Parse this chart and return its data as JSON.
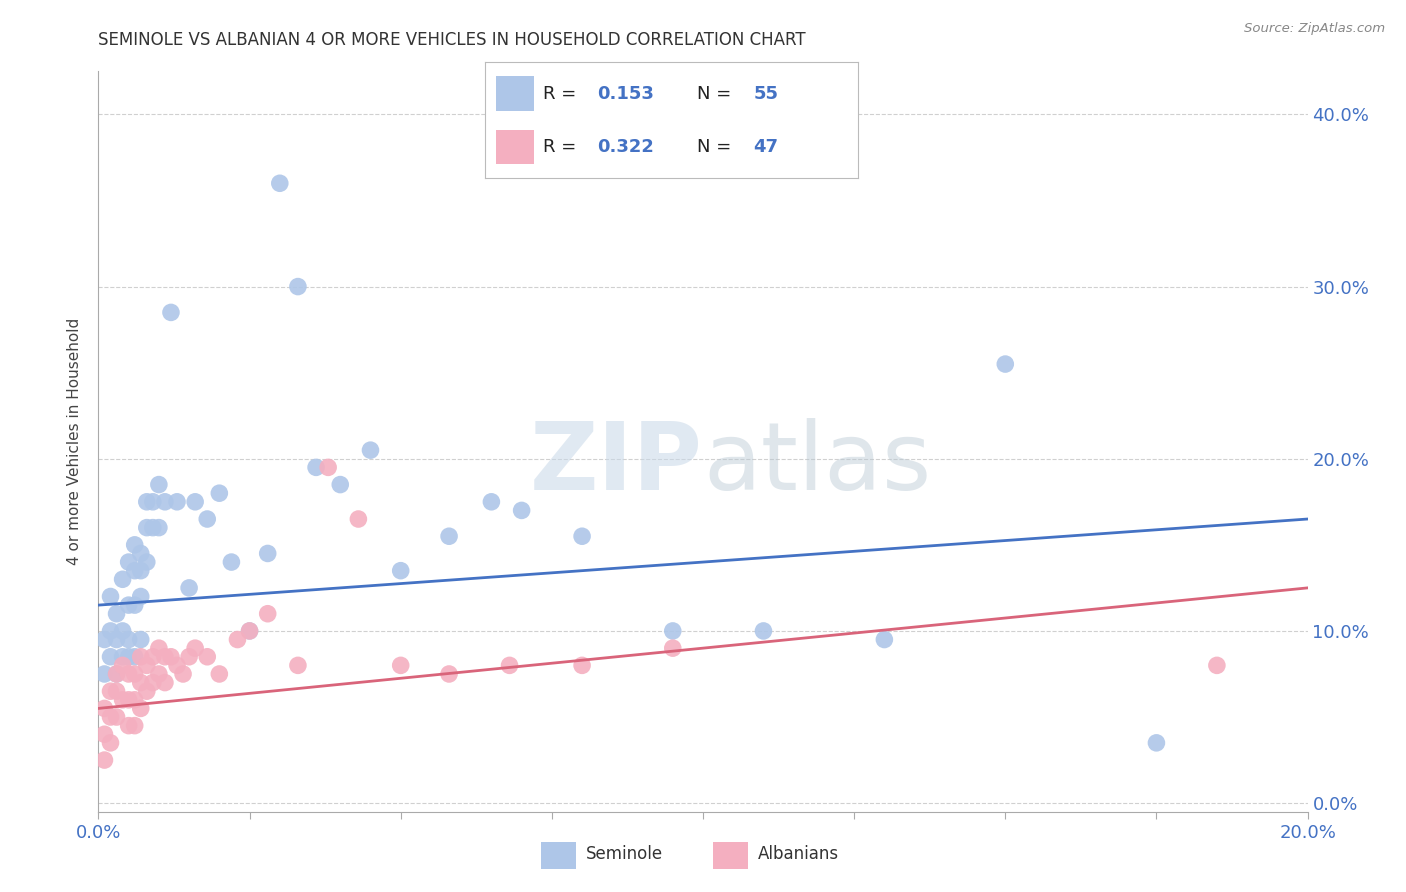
{
  "title": "SEMINOLE VS ALBANIAN 4 OR MORE VEHICLES IN HOUSEHOLD CORRELATION CHART",
  "source": "Source: ZipAtlas.com",
  "ylabel": "4 or more Vehicles in Household",
  "xlim": [
    0.0,
    0.2
  ],
  "ylim": [
    -0.005,
    0.425
  ],
  "seminole_R": "0.153",
  "seminole_N": "55",
  "albanian_R": "0.322",
  "albanian_N": "47",
  "seminole_color": "#aec6e8",
  "albanian_color": "#f4afc0",
  "seminole_line_color": "#4472c4",
  "albanian_line_color": "#d9647a",
  "background_color": "#ffffff",
  "grid_color": "#d0d0d0",
  "seminole_x": [
    0.001,
    0.001,
    0.002,
    0.002,
    0.002,
    0.003,
    0.003,
    0.003,
    0.004,
    0.004,
    0.004,
    0.005,
    0.005,
    0.005,
    0.005,
    0.006,
    0.006,
    0.006,
    0.006,
    0.007,
    0.007,
    0.007,
    0.007,
    0.008,
    0.008,
    0.008,
    0.009,
    0.009,
    0.01,
    0.01,
    0.011,
    0.012,
    0.013,
    0.015,
    0.016,
    0.018,
    0.02,
    0.022,
    0.025,
    0.028,
    0.03,
    0.033,
    0.036,
    0.04,
    0.045,
    0.05,
    0.058,
    0.065,
    0.07,
    0.08,
    0.095,
    0.11,
    0.13,
    0.15,
    0.175
  ],
  "seminole_y": [
    0.095,
    0.075,
    0.12,
    0.1,
    0.085,
    0.095,
    0.11,
    0.075,
    0.13,
    0.1,
    0.085,
    0.14,
    0.115,
    0.095,
    0.085,
    0.15,
    0.135,
    0.115,
    0.085,
    0.145,
    0.135,
    0.12,
    0.095,
    0.175,
    0.16,
    0.14,
    0.175,
    0.16,
    0.185,
    0.16,
    0.175,
    0.285,
    0.175,
    0.125,
    0.175,
    0.165,
    0.18,
    0.14,
    0.1,
    0.145,
    0.36,
    0.3,
    0.195,
    0.185,
    0.205,
    0.135,
    0.155,
    0.175,
    0.17,
    0.155,
    0.1,
    0.1,
    0.095,
    0.255,
    0.035
  ],
  "albanian_x": [
    0.001,
    0.001,
    0.001,
    0.002,
    0.002,
    0.002,
    0.003,
    0.003,
    0.003,
    0.004,
    0.004,
    0.005,
    0.005,
    0.005,
    0.006,
    0.006,
    0.006,
    0.007,
    0.007,
    0.007,
    0.008,
    0.008,
    0.009,
    0.009,
    0.01,
    0.01,
    0.011,
    0.011,
    0.012,
    0.013,
    0.014,
    0.015,
    0.016,
    0.018,
    0.02,
    0.023,
    0.025,
    0.028,
    0.033,
    0.038,
    0.043,
    0.05,
    0.058,
    0.068,
    0.08,
    0.095,
    0.185
  ],
  "albanian_y": [
    0.055,
    0.04,
    0.025,
    0.065,
    0.05,
    0.035,
    0.075,
    0.065,
    0.05,
    0.08,
    0.06,
    0.075,
    0.06,
    0.045,
    0.075,
    0.06,
    0.045,
    0.085,
    0.07,
    0.055,
    0.08,
    0.065,
    0.085,
    0.07,
    0.09,
    0.075,
    0.085,
    0.07,
    0.085,
    0.08,
    0.075,
    0.085,
    0.09,
    0.085,
    0.075,
    0.095,
    0.1,
    0.11,
    0.08,
    0.195,
    0.165,
    0.08,
    0.075,
    0.08,
    0.08,
    0.09,
    0.08
  ],
  "seminole_line_x0": 0.0,
  "seminole_line_y0": 0.115,
  "seminole_line_x1": 0.2,
  "seminole_line_y1": 0.165,
  "albanian_line_x0": 0.0,
  "albanian_line_y0": 0.055,
  "albanian_line_x1": 0.2,
  "albanian_line_y1": 0.125
}
